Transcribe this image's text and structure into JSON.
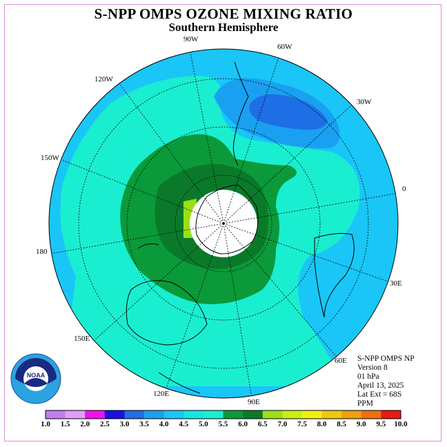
{
  "title": "S-NPP OMPS OZONE MIXING RATIO",
  "subtitle": "Southern Hemisphere",
  "longitude_labels": [
    "90W",
    "60W",
    "30W",
    "120W",
    "150W",
    "0",
    "180",
    "30E",
    "150E",
    "60E",
    "120E",
    "90E"
  ],
  "info": {
    "instrument": "S-NPP OMPS NP",
    "version": "Version 8",
    "level": "01 hPa",
    "date": "April 13, 2025",
    "lat_ext": "Lat Ext = 68S",
    "units": "PPM"
  },
  "colorbar": {
    "ticks": [
      "1.0",
      "1.5",
      "2.0",
      "2.5",
      "3.0",
      "3.5",
      "4.0",
      "4.5",
      "5.0",
      "5.5",
      "6.0",
      "6.5",
      "7.0",
      "7.5",
      "8.0",
      "8.5",
      "9.0",
      "9.5",
      "10.0"
    ],
    "colors": [
      "#bf7ff0",
      "#df9ff7",
      "#ee10ee",
      "#1a10e0",
      "#1e6ee6",
      "#1aa0f0",
      "#19c6f7",
      "#14e6e6",
      "#1aeed0",
      "#0a9a3a",
      "#0a7a2a",
      "#9ae014",
      "#c8f014",
      "#f0f010",
      "#f0c810",
      "#f0a010",
      "#f07010",
      "#e61a10",
      "#8c5a3c"
    ]
  },
  "colors": {
    "frame": "#d98fd9",
    "cyan_field": "#1aeed0",
    "light_blue": "#19c6f7",
    "mid_blue": "#1aa0f0",
    "green_outer": "#0a9a3a",
    "green_inner": "#0a7a2a",
    "lime": "#9ae014"
  },
  "logo_text": "NOAA"
}
